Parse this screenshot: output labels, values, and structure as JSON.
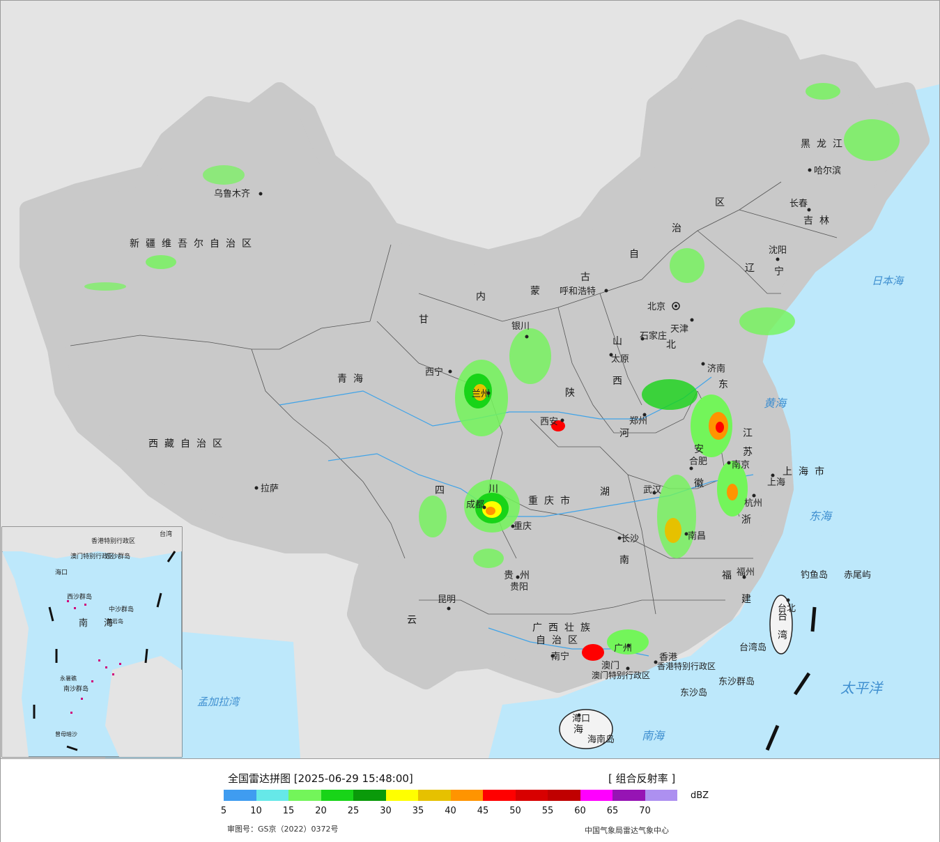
{
  "map": {
    "cities": [
      "乌鲁木齐",
      "拉萨",
      "西宁",
      "兰州",
      "银川",
      "呼和浩特",
      "北京",
      "天津",
      "石家庄",
      "太原",
      "西安",
      "郑州",
      "济南",
      "沈阳",
      "长春",
      "哈尔滨",
      "南京",
      "合肥",
      "上海",
      "杭州",
      "武汉",
      "成都",
      "重庆",
      "长沙",
      "南昌",
      "福州",
      "贵阳",
      "昆明",
      "南宁",
      "广州",
      "香港",
      "澳门",
      "海口",
      "台北"
    ],
    "provinces": [
      "新疆维吾尔自治区",
      "西藏自治区",
      "青海",
      "甘",
      "内",
      "蒙",
      "古",
      "自",
      "治",
      "区",
      "黑龙江",
      "吉林",
      "辽",
      "宁",
      "河",
      "北",
      "山",
      "西",
      "陕",
      "东",
      "江",
      "苏",
      "安",
      "徽",
      "浙",
      "湖",
      "南",
      "四",
      "川",
      "贵州",
      "云",
      "广西壮族",
      "自治区",
      "福",
      "建",
      "台",
      "湾",
      "海",
      "上海市",
      "重庆市",
      "香港特别行政区",
      "澳门特别行政区"
    ],
    "seas": [
      "日本海",
      "黄海",
      "东海",
      "太平洋",
      "南海",
      "孟加拉湾"
    ],
    "islands": [
      "钓鱼岛",
      "赤尾屿",
      "台湾岛",
      "东沙群岛",
      "东沙岛",
      "海南岛"
    ],
    "inset": [
      "南",
      "海",
      "东沙群岛",
      "西沙群岛",
      "中沙群岛",
      "南沙群岛",
      "永暑礁",
      "曾母暗沙",
      "香港特别行政区",
      "澳门特别行政区",
      "海口",
      "台湾",
      "黄岩岛"
    ]
  },
  "legend": {
    "title": "全国雷达拼图 [2025-06-29 15:48:00]",
    "product": "[ 组合反射率 ]",
    "unit": "dBZ",
    "colors": [
      "#3f9cf0",
      "#66e8e8",
      "#73f55a",
      "#18d418",
      "#0a9a0a",
      "#ffff00",
      "#e6c100",
      "#ff9400",
      "#ff0000",
      "#d80000",
      "#c00000",
      "#ff00ff",
      "#9614b4",
      "#ad90f0"
    ],
    "ticks": [
      "5",
      "10",
      "15",
      "20",
      "25",
      "30",
      "35",
      "40",
      "45",
      "50",
      "55",
      "60",
      "65",
      "70"
    ],
    "approval": "审图号：GS京（2022）0372号",
    "source": "中国气象局雷达气象中心"
  }
}
